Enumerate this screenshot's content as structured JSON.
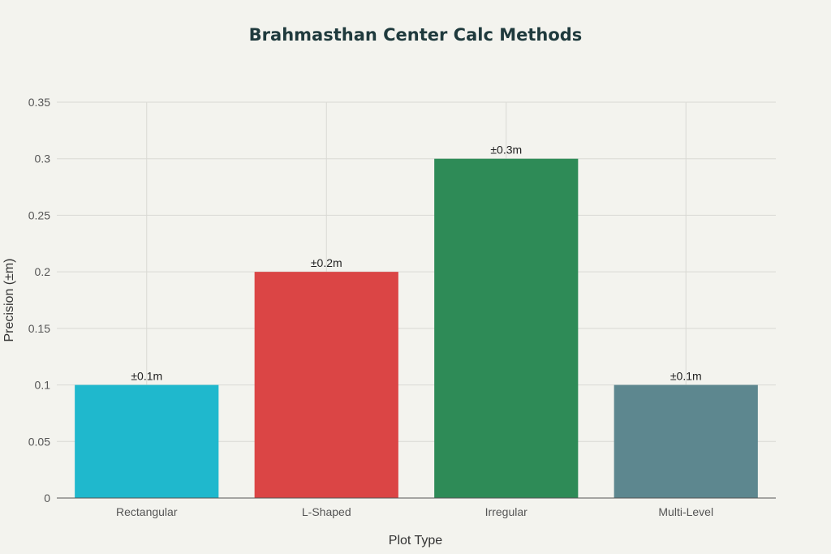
{
  "chart_data": {
    "type": "bar",
    "title": "Brahmasthan Center Calc Methods",
    "xlabel": "Plot Type",
    "ylabel": "Precision (±m)",
    "categories": [
      "Rectangular",
      "L-Shaped",
      "Irregular",
      "Multi-Level"
    ],
    "values": [
      0.1,
      0.2,
      0.3,
      0.1
    ],
    "data_labels": [
      "±0.1m",
      "±0.2m",
      "±0.3m",
      "±0.1m"
    ],
    "colors": [
      "#1fb8cd",
      "#db4545",
      "#2e8b57",
      "#5d878f"
    ],
    "ylim": [
      0,
      0.35
    ],
    "yticks": [
      0,
      0.05,
      0.1,
      0.15,
      0.2,
      0.25,
      0.3,
      0.35
    ],
    "ytick_labels": [
      "0",
      "0.05",
      "0.1",
      "0.15",
      "0.2",
      "0.25",
      "0.3",
      "0.35"
    ],
    "grid": true,
    "legend": "none"
  }
}
